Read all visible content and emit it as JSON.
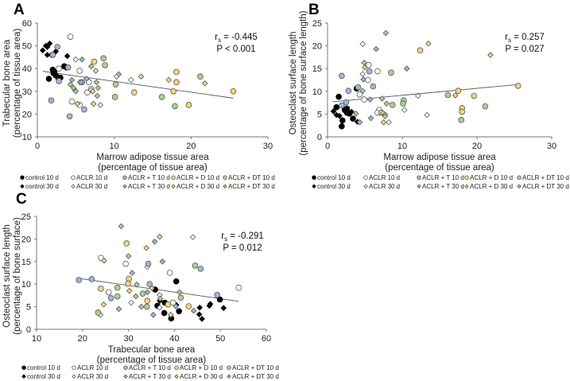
{
  "colors": {
    "control": "#000000",
    "aclr": "#ffffff",
    "t": "#9fb6dc",
    "d": "#f6d57e",
    "dt": "#a9d28f"
  },
  "legend": [
    {
      "key": "c10",
      "label": "control 10 d"
    },
    {
      "key": "a10",
      "label": "ACLR 10 d"
    },
    {
      "key": "t10",
      "label": "ACLR + T 10 d"
    },
    {
      "key": "d10",
      "label": "ACLR + D 10 d"
    },
    {
      "key": "dt10",
      "label": "ACLR + DT 10 d"
    },
    {
      "key": "c30",
      "label": "control 30 d"
    },
    {
      "key": "a30",
      "label": "ACLR 30 d"
    },
    {
      "key": "t30",
      "label": "ACLR + T 30 d"
    },
    {
      "key": "d30",
      "label": "ACLR + D 30 d"
    },
    {
      "key": "dt30",
      "label": "ACLR + DT 30 d"
    }
  ],
  "chart_data": [
    {
      "panel": "A",
      "type": "scatter",
      "xlabel": [
        "Marrow adipose tissue area",
        "(percentage of tissue area)"
      ],
      "ylabel": [
        "Trabecular bone area",
        "(percentage of tissue area)"
      ],
      "xlim": [
        0,
        30
      ],
      "ylim": [
        10,
        60
      ],
      "xticks": [
        0,
        10,
        20,
        30
      ],
      "yticks": [
        10,
        20,
        30,
        40,
        50,
        60
      ],
      "stat": {
        "r": "r",
        "sub": "s",
        "r_value": " = -0.445",
        "p": "P < 0.001"
      },
      "trend": [
        [
          0.7,
          38.8
        ],
        [
          25.5,
          27
        ]
      ],
      "series": {
        "c10": [
          [
            1.5,
            35.5
          ],
          [
            2,
            39.5
          ],
          [
            2.1,
            38
          ],
          [
            2.4,
            37
          ],
          [
            2.7,
            36
          ],
          [
            3,
            36
          ],
          [
            3.5,
            41
          ],
          [
            3.8,
            40.5
          ],
          [
            2.2,
            38.5
          ]
        ],
        "c30": [
          [
            0.7,
            48
          ],
          [
            1.1,
            50
          ],
          [
            1.3,
            46
          ],
          [
            1.6,
            51
          ],
          [
            1.8,
            46
          ],
          [
            2.4,
            47.5
          ],
          [
            3.9,
            45.5
          ],
          [
            1.3,
            49.5
          ]
        ],
        "a10": [
          [
            4.3,
            54
          ],
          [
            2.8,
            40
          ],
          [
            5.5,
            39
          ],
          [
            4.5,
            25.5
          ],
          [
            5.5,
            24
          ],
          [
            6.5,
            29.5
          ],
          [
            6.7,
            34
          ],
          [
            7,
            31
          ]
        ],
        "a30": [
          [
            5,
            44
          ],
          [
            5.5,
            34
          ],
          [
            8.2,
            24
          ],
          [
            10.3,
            36.5
          ],
          [
            12.2,
            35
          ],
          [
            7,
            30.5
          ]
        ],
        "t10": [
          [
            2.6,
            49.5
          ],
          [
            2,
            46
          ],
          [
            4,
            40.5
          ],
          [
            2.8,
            34.5
          ],
          [
            1.8,
            26
          ],
          [
            4.2,
            19
          ],
          [
            5.8,
            34
          ],
          [
            6.1,
            22
          ]
        ],
        "t30": [
          [
            5.8,
            44
          ],
          [
            4.5,
            35
          ],
          [
            6.4,
            35.5
          ],
          [
            4.9,
            30.5
          ],
          [
            10.6,
            37.5
          ],
          [
            5.7,
            34
          ]
        ],
        "d10": [
          [
            7.4,
            43
          ],
          [
            12.6,
            29.5
          ],
          [
            17.7,
            30
          ],
          [
            18.1,
            38.5
          ],
          [
            18.1,
            34
          ],
          [
            19.7,
            24
          ],
          [
            25.5,
            30
          ]
        ],
        "d30": [
          [
            7.6,
            39
          ],
          [
            7.2,
            30
          ],
          [
            7.3,
            24.5
          ],
          [
            5.2,
            24.5
          ],
          [
            13.5,
            36.5
          ],
          [
            17.1,
            35
          ],
          [
            21.8,
            33.5
          ]
        ],
        "dt10": [
          [
            8.6,
            44.5
          ],
          [
            8.8,
            41.5
          ],
          [
            10.2,
            33
          ],
          [
            10.1,
            27.5
          ],
          [
            16.2,
            27.5
          ],
          [
            17.9,
            23.5
          ],
          [
            21.2,
            36.5
          ]
        ],
        "dt30": [
          [
            7,
            41
          ],
          [
            4.3,
            33
          ],
          [
            4.7,
            31.5
          ],
          [
            5,
            30
          ],
          [
            7.7,
            34
          ],
          [
            7.9,
            31.5
          ],
          [
            7.8,
            28
          ]
        ]
      }
    },
    {
      "panel": "B",
      "type": "scatter",
      "xlabel": [
        "Marrow adipose tissue area",
        "(percentage of tissue area)"
      ],
      "ylabel": [
        "Osteoclast surface length",
        "(percentage of bone surface length)"
      ],
      "xlim": [
        0,
        30
      ],
      "ylim": [
        0,
        25
      ],
      "xticks": [
        0,
        10,
        20,
        30
      ],
      "yticks": [
        0,
        5,
        10,
        15,
        20,
        25
      ],
      "stat": {
        "r": "r",
        "sub": "s",
        "r_value": " = 0.257",
        "p": "P = 0.027"
      },
      "trend": [
        [
          0.7,
          7.7
        ],
        [
          25.5,
          11.5
        ]
      ],
      "series": {
        "c10": [
          [
            1.5,
            8.8
          ],
          [
            1.2,
            6.5
          ],
          [
            2,
            3.6
          ],
          [
            1.9,
            2.3
          ],
          [
            2.3,
            5.9
          ],
          [
            2.6,
            5.3
          ],
          [
            2.9,
            5.1
          ],
          [
            2.6,
            6.2
          ],
          [
            3.4,
            4
          ],
          [
            3.9,
            10.6
          ]
        ],
        "c30": [
          [
            0.8,
            5.6
          ],
          [
            1.2,
            4.8
          ],
          [
            1.6,
            4.6
          ],
          [
            3.2,
            5.5
          ],
          [
            4,
            3.3
          ],
          [
            2.7,
            5.2
          ]
        ],
        "a10": [
          [
            5.5,
            15.8
          ],
          [
            6.7,
            14.4
          ],
          [
            5.4,
            12.5
          ],
          [
            4.3,
            9.3
          ],
          [
            4.9,
            8.2
          ],
          [
            6.9,
            5.9
          ],
          [
            6.7,
            5.3
          ]
        ],
        "a30": [
          [
            4.7,
            20.4
          ],
          [
            4.7,
            13.8
          ],
          [
            12.1,
            9
          ],
          [
            10.3,
            5.9
          ],
          [
            13.3,
            4.8
          ],
          [
            8.2,
            3.2
          ]
        ],
        "t10": [
          [
            1.9,
            13.4
          ],
          [
            2.8,
            10.1
          ],
          [
            2.5,
            7.6
          ],
          [
            1.9,
            6.9
          ],
          [
            4.1,
            10.9
          ],
          [
            5.6,
            14.4
          ],
          [
            6.1,
            11.1
          ]
        ],
        "t30": [
          [
            6.5,
            19.3
          ],
          [
            4.8,
            12.6
          ],
          [
            10.6,
            15
          ],
          [
            5.7,
            8.2
          ],
          [
            5.8,
            4.1
          ],
          [
            4.3,
            3.2
          ]
        ],
        "d10": [
          [
            12.4,
            19
          ],
          [
            17.5,
            10.1
          ],
          [
            19.6,
            9
          ],
          [
            18,
            6.3
          ],
          [
            18,
            5.5
          ],
          [
            25.5,
            11.2
          ],
          [
            7.2,
            5.3
          ]
        ],
        "d30": [
          [
            13.5,
            20.5
          ],
          [
            21.8,
            18
          ],
          [
            5,
            15.2
          ],
          [
            17.1,
            9.1
          ],
          [
            7.5,
            3.2
          ],
          [
            7.4,
            5.2
          ]
        ],
        "dt10": [
          [
            8.5,
            14.1
          ],
          [
            10.2,
            8
          ],
          [
            10.1,
            7.3
          ],
          [
            8.7,
            7
          ],
          [
            16.1,
            9.2
          ],
          [
            21.1,
            6.7
          ],
          [
            17.9,
            3.7
          ]
        ],
        "dt30": [
          [
            7.8,
            22.8
          ],
          [
            4.9,
            16.3
          ],
          [
            4.7,
            10.1
          ],
          [
            7.3,
            8.4
          ],
          [
            7.9,
            7.3
          ],
          [
            7.7,
            4.9
          ],
          [
            7.7,
            4.5
          ],
          [
            3.8,
            5.1
          ]
        ]
      }
    },
    {
      "panel": "C",
      "type": "scatter",
      "xlabel": [
        "Trabecular bone area",
        "(percentage of tissue area)"
      ],
      "ylabel": [
        "Osteoclast surface length",
        "(percentage of bone surface)"
      ],
      "xlim": [
        10,
        60
      ],
      "ylim": [
        0,
        25
      ],
      "xticks": [
        10,
        20,
        30,
        40,
        50,
        60
      ],
      "yticks": [
        0,
        5,
        10,
        15,
        20,
        25
      ],
      "stat": {
        "r": "r",
        "sub": "s",
        "r_value": " = -0.291",
        "p": "P = 0.012"
      },
      "trend": [
        [
          19,
          11.3
        ],
        [
          54,
          6.2
        ]
      ],
      "series": {
        "c10": [
          [
            35.8,
            8.8
          ],
          [
            40.4,
            10.6
          ],
          [
            36.3,
            5.2
          ],
          [
            37.8,
            3.6
          ],
          [
            37.9,
            5.9
          ],
          [
            39.3,
            2.4
          ],
          [
            41,
            4
          ],
          [
            49.9,
            6.6
          ]
        ],
        "c30": [
          [
            36.8,
            6.3
          ],
          [
            40.4,
            5.4
          ],
          [
            45.5,
            4.8
          ],
          [
            45.4,
            3.3
          ],
          [
            46,
            2.3
          ],
          [
            47.6,
            5.2
          ],
          [
            47.8,
            5.6
          ],
          [
            50.7,
            4.7
          ]
        ],
        "a10": [
          [
            24,
            15.8
          ],
          [
            29.4,
            14.5
          ],
          [
            39,
            12.5
          ],
          [
            25.7,
            8.2
          ],
          [
            39.7,
            5.9
          ],
          [
            54,
            9.2
          ]
        ],
        "a30": [
          [
            34.1,
            13.8
          ],
          [
            23.9,
            3.2
          ],
          [
            30.6,
            5.9
          ],
          [
            36.8,
            7.6
          ],
          [
            36.8,
            4.8
          ],
          [
            44,
            20.4
          ]
        ],
        "t10": [
          [
            19.2,
            10.9
          ],
          [
            22,
            11.1
          ],
          [
            34.6,
            10
          ],
          [
            26.2,
            6.9
          ],
          [
            34.3,
            14.5
          ],
          [
            45.7,
            13.4
          ],
          [
            49.3,
            7.6
          ]
        ],
        "t30": [
          [
            35.7,
            19.4
          ],
          [
            37.4,
            15
          ],
          [
            30.8,
            12.5
          ],
          [
            34.1,
            8.2
          ],
          [
            35.4,
            3.2
          ],
          [
            40.3,
            5.1
          ],
          [
            44.2,
            4.1
          ]
        ],
        "d10": [
          [
            29.6,
            19
          ],
          [
            30.1,
            11.2
          ],
          [
            29.9,
            10.1
          ],
          [
            24,
            9
          ],
          [
            34.1,
            6.3
          ],
          [
            38.6,
            5.5
          ],
          [
            43.1,
            5.1
          ]
        ],
        "d30": [
          [
            36.8,
            20.5
          ],
          [
            33.9,
            18
          ],
          [
            24.7,
            15.2
          ],
          [
            30.2,
            8.5
          ],
          [
            35.1,
            9.1
          ],
          [
            24.6,
            5.5
          ],
          [
            39.2,
            3.2
          ]
        ],
        "dt10": [
          [
            27.6,
            9.2
          ],
          [
            27.6,
            7.3
          ],
          [
            23.4,
            3.7
          ],
          [
            33.1,
            7.9
          ],
          [
            44.5,
            14.1
          ],
          [
            41.4,
            7
          ],
          [
            34,
            5
          ]
        ],
        "dt30": [
          [
            28.4,
            22.8
          ],
          [
            30,
            16.2
          ],
          [
            31.8,
            9.9
          ],
          [
            31.6,
            7.3
          ],
          [
            27.9,
            4.5
          ],
          [
            32.8,
            5
          ],
          [
            36.9,
            6.8
          ],
          [
            41.1,
            8.2
          ]
        ]
      }
    }
  ]
}
